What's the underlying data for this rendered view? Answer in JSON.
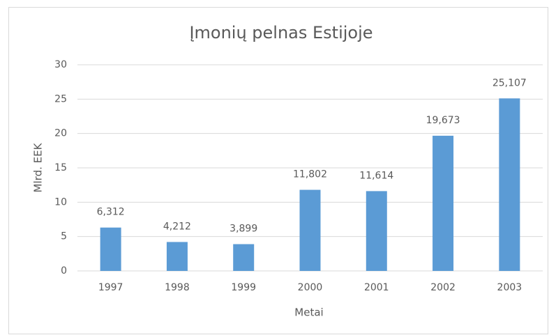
{
  "chart_data": {
    "type": "bar",
    "title": "Įmonių pelnas Estijoje",
    "x_label": "Metai",
    "y_label": "Mlrd. EEK",
    "categories": [
      "1997",
      "1998",
      "1999",
      "2000",
      "2001",
      "2002",
      "2003"
    ],
    "values": [
      6.312,
      4.212,
      3.899,
      11.802,
      11.614,
      19.673,
      25.107
    ],
    "value_labels": [
      "6,312",
      "4,212",
      "3,899",
      "11,802",
      "11,614",
      "19,673",
      "25,107"
    ],
    "color": "#5b9bd5",
    "ylim": [
      0,
      30
    ],
    "yticks": [
      0,
      5,
      10,
      15,
      20,
      25,
      30
    ],
    "grid": true
  }
}
